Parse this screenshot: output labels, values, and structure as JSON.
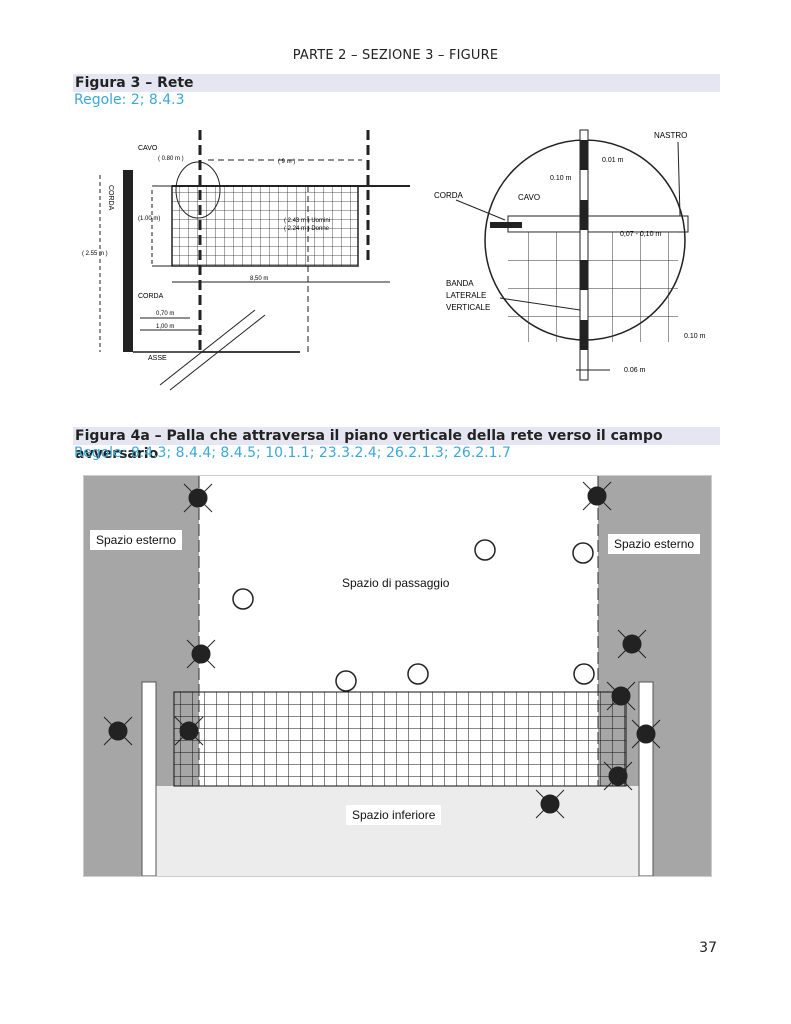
{
  "header": "PARTE 2 – SEZIONE 3 – FIGURE",
  "fig3": {
    "title": "Figura 3 – Rete",
    "rules": "Regole: 2; 8.4.3",
    "left": {
      "cavo": "CAVO",
      "corda_vert": "CORDA",
      "dim_080": "( 0.80 m )",
      "dim_9m": "( 9 m )",
      "dim_100": "(1.00 m)",
      "dim_255": "( 2.55 m )",
      "heights_1": "( 2.43 m ) Uomini",
      "heights_2": "( 2.24 m ) Donne",
      "corda": "CORDA",
      "dim_850": "8,50 m",
      "dim_070": "0,70 m",
      "dim_100b": "1,00 m",
      "asse": "ASSE"
    },
    "right": {
      "nastro": "NASTRO",
      "corda": "CORDA",
      "cavo": "CAVO",
      "d001": "0.01 m",
      "d010a": "0.10 m",
      "d007": "0,07 - 0,10 m",
      "banda1": "BANDA",
      "banda2": "LATERALE",
      "banda3": "VERTICALE",
      "d010b": "0.10 m",
      "d006": "0.06 m"
    }
  },
  "fig4a": {
    "title": "Figura 4a – Palla che attraversa il piano verticale della rete verso il campo avversario",
    "rules": "Regole: 8.4.3; 8.4.4; 8.4.5; 10.1.1; 23.3.2.4; 26.2.1.3; 26.2.1.7",
    "spazio_esterno_left": "Spazio esterno",
    "spazio_esterno_right": "Spazio esterno",
    "spazio_passaggio": "Spazio di passaggio",
    "spazio_inferiore": "Spazio inferiore"
  },
  "page_number": "37"
}
